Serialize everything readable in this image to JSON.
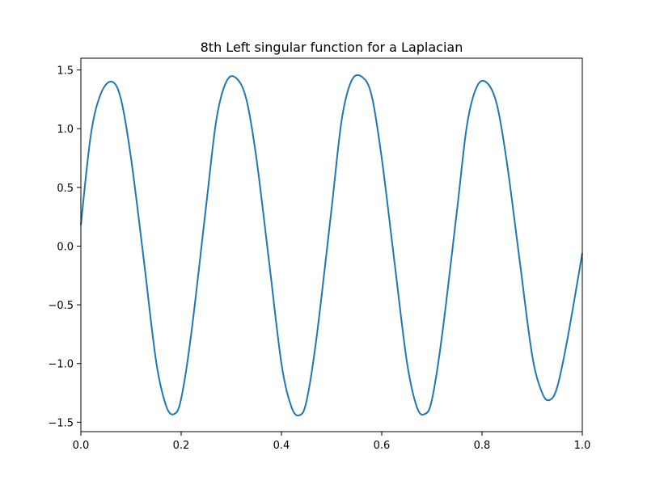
{
  "chart_data": {
    "type": "line",
    "title": "8th Left singular function for a Laplacian",
    "xlabel": "",
    "ylabel": "",
    "xlim": [
      0.0,
      1.0
    ],
    "ylim": [
      -1.58,
      1.6
    ],
    "grid": false,
    "x_ticks": [
      0.0,
      0.2,
      0.4,
      0.6,
      0.8,
      1.0
    ],
    "x_tick_labels": [
      "0.0",
      "0.2",
      "0.4",
      "0.6",
      "0.8",
      "1.0"
    ],
    "y_ticks": [
      -1.5,
      -1.0,
      -0.5,
      0.0,
      0.5,
      1.0,
      1.5
    ],
    "y_tick_labels": [
      "−1.5",
      "−1.0",
      "−0.5",
      "0.0",
      "0.5",
      "1.0",
      "1.5"
    ],
    "series": [
      {
        "color": "#1f77b4",
        "x": [
          0.0,
          0.02,
          0.04,
          0.062,
          0.08,
          0.1,
          0.125,
          0.15,
          0.17,
          0.186,
          0.2,
          0.22,
          0.25,
          0.27,
          0.29,
          0.31,
          0.33,
          0.35,
          0.375,
          0.4,
          0.42,
          0.436,
          0.45,
          0.47,
          0.5,
          0.52,
          0.54,
          0.561,
          0.58,
          0.6,
          0.625,
          0.65,
          0.67,
          0.686,
          0.7,
          0.72,
          0.75,
          0.77,
          0.79,
          0.81,
          0.83,
          0.85,
          0.875,
          0.9,
          0.92,
          0.935,
          0.95,
          0.97,
          1.0
        ],
        "y": [
          0.18,
          0.95,
          1.3,
          1.4,
          1.25,
          0.75,
          -0.1,
          -0.98,
          -1.36,
          -1.43,
          -1.3,
          -0.75,
          0.35,
          1.07,
          1.4,
          1.43,
          1.25,
          0.75,
          -0.12,
          -1.0,
          -1.37,
          -1.44,
          -1.32,
          -0.78,
          0.32,
          1.07,
          1.41,
          1.44,
          1.28,
          0.75,
          -0.12,
          -0.98,
          -1.37,
          -1.43,
          -1.31,
          -0.77,
          0.3,
          1.03,
          1.36,
          1.39,
          1.2,
          0.7,
          -0.12,
          -0.93,
          -1.25,
          -1.31,
          -1.2,
          -0.8,
          -0.06
        ]
      }
    ]
  }
}
